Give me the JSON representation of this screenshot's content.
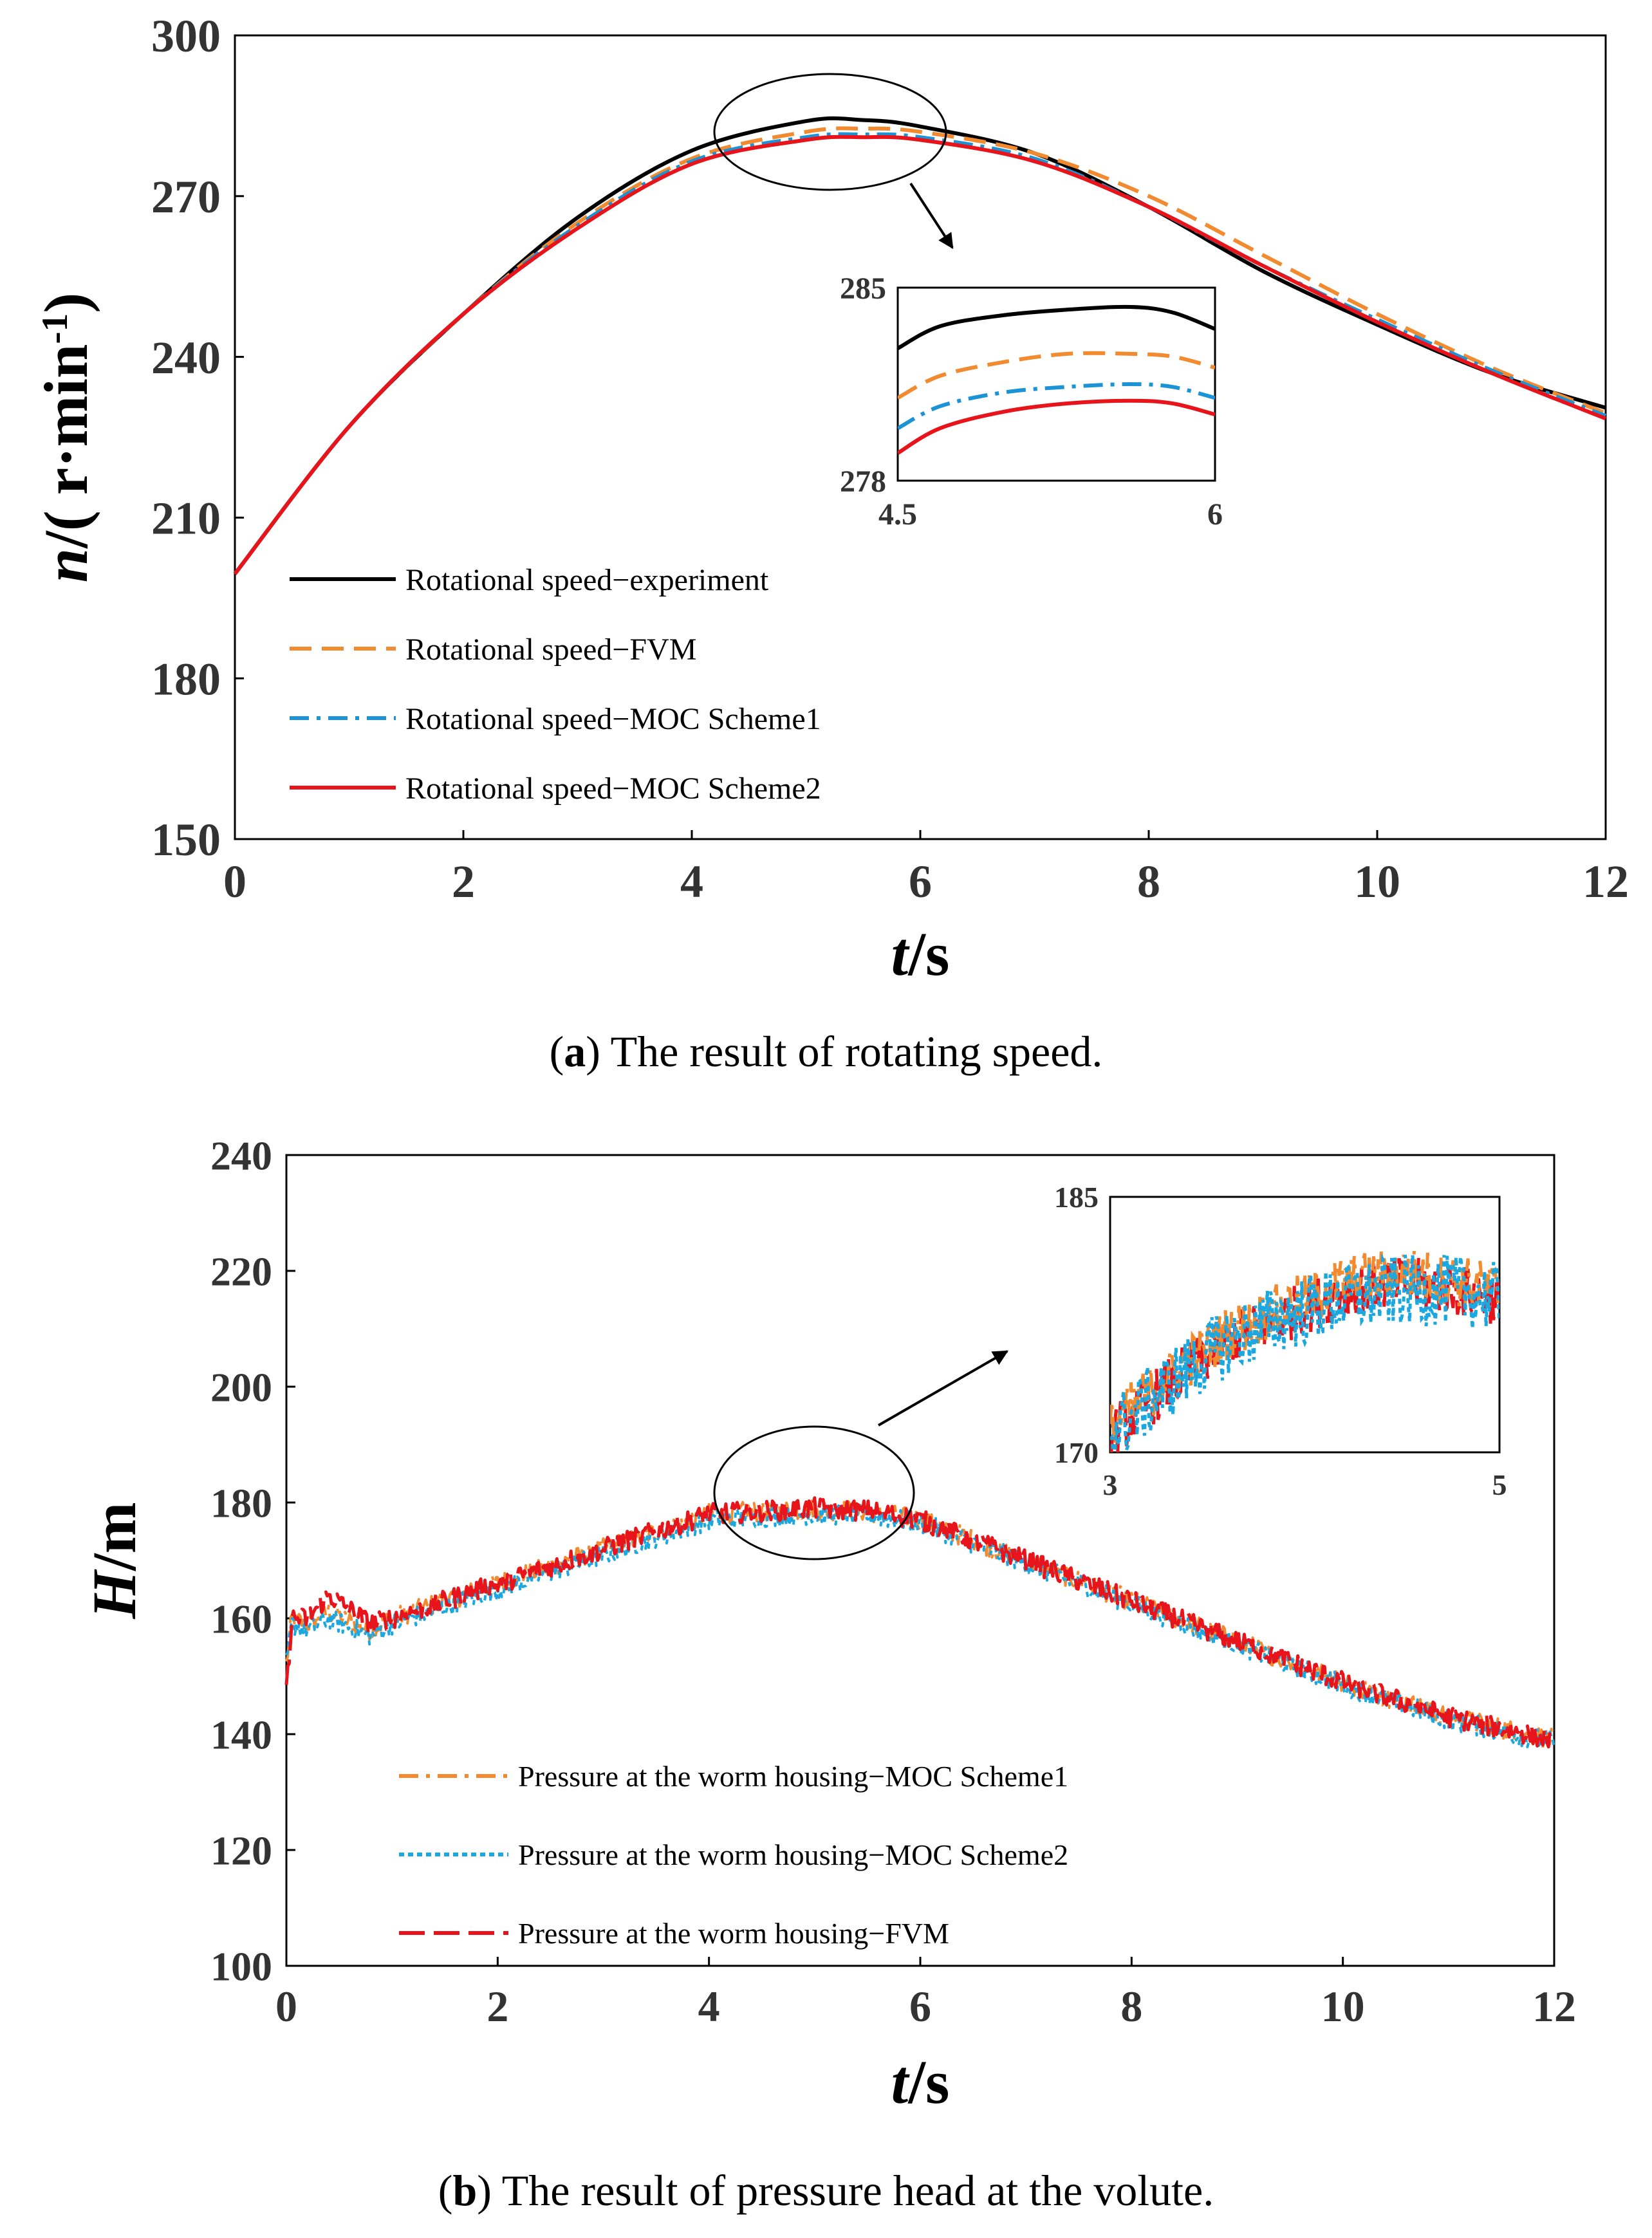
{
  "chart_data": [
    {
      "id": "a",
      "type": "line",
      "xlabel": "t/s",
      "ylabel": "n/( r·min-1)",
      "xlim": [
        0,
        12
      ],
      "ylim": [
        150,
        300
      ],
      "xticks": [
        0,
        2,
        4,
        6,
        8,
        10,
        12
      ],
      "yticks": [
        150,
        180,
        210,
        240,
        270,
        300
      ],
      "legend_placement": "lower-left",
      "series": [
        {
          "name": "Rotational speed−experiment",
          "color": "#000000",
          "dash": "solid",
          "x": [
            0,
            1,
            2,
            3,
            4,
            5,
            5.5,
            6,
            7,
            8,
            9,
            10,
            11,
            12
          ],
          "y": [
            199.5,
            227,
            248,
            266,
            278.5,
            284,
            284.2,
            283,
            278,
            268,
            256,
            246,
            237,
            230.5
          ]
        },
        {
          "name": "Rotational speed−FVM",
          "color": "#F28A30",
          "dash": "dash",
          "x": [
            0,
            1,
            2,
            3,
            4,
            5,
            5.5,
            6,
            7,
            8,
            9,
            10,
            11,
            12
          ],
          "y": [
            199.5,
            227,
            248,
            265,
            277,
            282,
            282.6,
            282,
            278,
            270,
            259,
            248,
            238,
            229.5
          ]
        },
        {
          "name": "Rotational speed−MOC Scheme1",
          "color": "#1B93D4",
          "dash": "dashdot",
          "x": [
            0,
            1,
            2,
            3,
            4,
            5,
            5.5,
            6,
            7,
            8,
            9,
            10,
            11,
            12
          ],
          "y": [
            199.5,
            227,
            248,
            264.5,
            276.5,
            281,
            281.5,
            281,
            277,
            268,
            257,
            247,
            237.5,
            229
          ]
        },
        {
          "name": "Rotational speed−MOC Scheme2",
          "color": "#E8141B",
          "dash": "solid",
          "x": [
            0,
            1,
            2,
            3,
            4,
            5,
            5.5,
            6,
            7,
            8,
            9,
            10,
            11,
            12
          ],
          "y": [
            199.5,
            227,
            248,
            264,
            276,
            280.5,
            281,
            280.5,
            276.5,
            268,
            257,
            246.5,
            237,
            228.5
          ]
        }
      ],
      "inset": {
        "xlim": [
          4.5,
          6
        ],
        "ylim": [
          278,
          285
        ],
        "xticks": [
          "4.5",
          "6"
        ],
        "yticks": [
          "278",
          "285"
        ],
        "series": [
          {
            "x": [
              4.5,
              4.7,
              5,
              5.3,
              5.6,
              5.8,
              6
            ],
            "y": [
              282.8,
              283.6,
              284.0,
              284.2,
              284.3,
              284.1,
              283.5
            ]
          },
          {
            "x": [
              4.5,
              4.7,
              5,
              5.3,
              5.6,
              5.8,
              6
            ],
            "y": [
              281.0,
              281.8,
              282.3,
              282.6,
              282.6,
              282.5,
              282.1
            ]
          },
          {
            "x": [
              4.5,
              4.7,
              5,
              5.3,
              5.6,
              5.8,
              6
            ],
            "y": [
              279.9,
              280.7,
              281.2,
              281.4,
              281.5,
              281.4,
              281.0
            ]
          },
          {
            "x": [
              4.5,
              4.7,
              5,
              5.3,
              5.6,
              5.8,
              6
            ],
            "y": [
              279.0,
              279.9,
              280.5,
              280.8,
              280.9,
              280.8,
              280.4
            ]
          }
        ]
      }
    },
    {
      "id": "b",
      "type": "line",
      "xlabel": "t/s",
      "ylabel": "H/m",
      "xlim": [
        0,
        12
      ],
      "ylim": [
        100,
        240
      ],
      "xticks": [
        0,
        2,
        4,
        6,
        8,
        10,
        12
      ],
      "yticks": [
        100,
        120,
        140,
        160,
        180,
        200,
        220,
        240
      ],
      "legend_placement": "lower-left",
      "series": [
        {
          "name": "Pressure at the worm housing−MOC Scheme1",
          "color": "#F28A30",
          "dash": "dashdot",
          "x": [
            0,
            0.05,
            0.2,
            0.4,
            0.8,
            1,
            2,
            3,
            4,
            4.5,
            5,
            5.5,
            6,
            7,
            8,
            9,
            10,
            11,
            12
          ],
          "y": [
            152,
            160,
            159,
            161,
            158,
            160,
            166,
            172,
            178,
            178.5,
            178.8,
            178.5,
            177,
            170,
            163,
            156,
            149,
            143,
            139
          ]
        },
        {
          "name": "Pressure at the worm housing−MOC Scheme2",
          "color": "#1BA8E0",
          "dash": "dot",
          "x": [
            0,
            0.05,
            0.2,
            0.4,
            0.8,
            1,
            2,
            3,
            4,
            4.5,
            5,
            5.5,
            6,
            7,
            8,
            9,
            10,
            11,
            12
          ],
          "y": [
            152,
            159,
            158,
            160,
            157,
            159,
            165,
            171,
            177,
            177.5,
            178,
            177.8,
            176.5,
            169.5,
            162.5,
            155.5,
            148.5,
            142.5,
            138.5
          ]
        },
        {
          "name": "Pressure at the worm housing−FVM",
          "color": "#E8141B",
          "dash": "longdash",
          "x": [
            0,
            0.05,
            0.2,
            0.4,
            0.8,
            1,
            2,
            3,
            4,
            4.5,
            5,
            5.5,
            6,
            7,
            8,
            9,
            10,
            11,
            12
          ],
          "y": [
            147,
            160,
            160,
            164,
            159,
            160,
            166,
            172,
            178,
            178.5,
            179,
            178.6,
            177,
            170,
            163,
            156,
            149,
            143,
            139
          ]
        }
      ],
      "inset": {
        "xlim": [
          3,
          5
        ],
        "ylim": [
          170,
          185
        ],
        "xticks": [
          "3",
          "5"
        ],
        "yticks": [
          "170",
          "185"
        ],
        "series": [
          {
            "x": [
              3,
              3.3,
              3.6,
              3.9,
              4.2,
              4.5,
              4.8,
              5
            ],
            "y": [
              171.5,
              174.5,
              177,
              178.5,
              180,
              180.5,
              180,
              179.5
            ]
          },
          {
            "x": [
              3,
              3.3,
              3.6,
              3.9,
              4.2,
              4.5,
              4.8,
              5
            ],
            "y": [
              171,
              174,
              176.5,
              178,
              179,
              179.5,
              179.5,
              179
            ]
          },
          {
            "x": [
              3,
              3.3,
              3.6,
              3.9,
              4.2,
              4.5,
              4.8,
              5
            ],
            "y": [
              171,
              174,
              176.5,
              178,
              179.5,
              180,
              179.5,
              179
            ]
          }
        ]
      }
    }
  ],
  "captions": {
    "a_letter": "a",
    "a_text": " The result of rotating speed.",
    "b_letter": "b",
    "b_text": " The result of pressure head at the volute."
  }
}
